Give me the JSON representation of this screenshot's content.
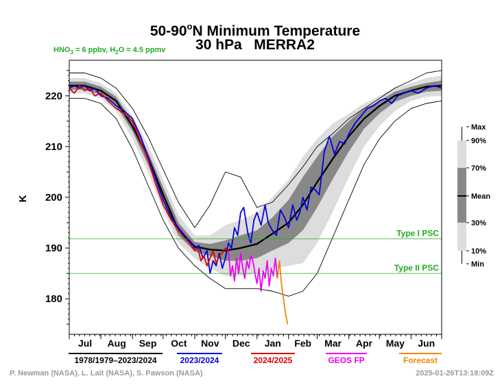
{
  "header": {
    "title_line1_pre": "50-90",
    "title_line1_sup": "o",
    "title_line1_post": "N Minimum Temperature",
    "title_line2": "30 hPa   MERRA2",
    "conditions": {
      "hno3_pre": "HNO",
      "hno3_sub": "3",
      "hno3_post": " = 6 ppbv, H",
      "h2o_sub": "2",
      "h2o_post": "O = 4.5 ppmv"
    }
  },
  "footer": {
    "credits": "P. Newman (NASA), L. Lait (NASA), S. Pawson (NASA)",
    "timestamp": "2025-01-26T13:18:09Z"
  },
  "percentile_key": {
    "labels": [
      "Max",
      "90%",
      "70%",
      "Mean",
      "30%",
      "10%",
      "Min"
    ]
  },
  "colors": {
    "climatology": "#000000",
    "year_2023_2024": "#0000dd",
    "year_2024_2025": "#dd0000",
    "geos_fp": "#ee00ee",
    "forecast": "#ee8800",
    "psc": "#22aa22",
    "band_outer": "#dddddd",
    "band_mid": "#bbbbbb",
    "band_inner": "#888888"
  },
  "chart_data": {
    "type": "line",
    "title": "50-90°N Minimum Temperature 30 hPa MERRA2",
    "ylabel": "K",
    "xlabel": "",
    "ylim": [
      173,
      227
    ],
    "xlim": [
      0,
      365
    ],
    "yticks": [
      180,
      190,
      200,
      210,
      220
    ],
    "x_axis": "day of year starting July 1",
    "months": [
      "Jul",
      "Aug",
      "Sep",
      "Oct",
      "Nov",
      "Dec",
      "Jan",
      "Feb",
      "Mar",
      "Apr",
      "May",
      "Jun"
    ],
    "month_starts": [
      0,
      31,
      62,
      92,
      123,
      153,
      184,
      215,
      243,
      274,
      304,
      335,
      365
    ],
    "reference_lines": [
      {
        "label": "Type I PSC",
        "value": 191.8
      },
      {
        "label": "Type II PSC",
        "value": 185.0
      }
    ],
    "climatology": {
      "x": [
        0,
        15,
        31,
        46,
        62,
        77,
        92,
        107,
        123,
        138,
        153,
        168,
        184,
        199,
        215,
        229,
        243,
        258,
        274,
        289,
        304,
        319,
        335,
        350,
        365
      ],
      "max": [
        224.5,
        224.5,
        223.5,
        221.5,
        217.5,
        212.0,
        205.5,
        199.0,
        194.0,
        198.5,
        205.0,
        204.0,
        198.0,
        199.0,
        202.5,
        206.0,
        210.0,
        212.5,
        215.5,
        217.5,
        219.5,
        221.5,
        223.0,
        224.5,
        225.0
      ],
      "p90": [
        223.5,
        223.5,
        222.5,
        220.5,
        216.0,
        210.5,
        203.5,
        196.5,
        192.5,
        192.5,
        194.5,
        195.5,
        197.0,
        200.0,
        203.5,
        208.0,
        211.5,
        214.5,
        216.5,
        218.5,
        220.0,
        221.5,
        222.5,
        223.5,
        224.0
      ],
      "p70": [
        222.8,
        222.8,
        221.8,
        219.8,
        215.0,
        209.0,
        202.0,
        195.0,
        191.2,
        190.8,
        191.5,
        192.5,
        193.5,
        196.0,
        199.5,
        204.0,
        208.0,
        212.0,
        215.0,
        217.5,
        219.0,
        220.8,
        221.8,
        222.5,
        223.0
      ],
      "mean": [
        222.0,
        222.0,
        221.0,
        219.0,
        214.0,
        208.0,
        200.5,
        193.5,
        190.3,
        189.7,
        189.5,
        190.0,
        190.8,
        192.8,
        195.0,
        198.5,
        203.0,
        207.5,
        212.0,
        215.5,
        218.0,
        220.0,
        221.0,
        221.8,
        222.0
      ],
      "p30": [
        221.2,
        221.2,
        220.2,
        218.0,
        213.0,
        206.5,
        199.0,
        192.5,
        189.3,
        188.5,
        187.5,
        187.5,
        188.0,
        189.5,
        191.0,
        193.5,
        198.0,
        203.5,
        209.0,
        213.5,
        216.5,
        218.8,
        220.0,
        220.8,
        221.0
      ],
      "p10": [
        220.5,
        220.5,
        219.5,
        217.0,
        211.5,
        205.0,
        197.5,
        191.0,
        188.0,
        186.0,
        184.5,
        184.5,
        185.0,
        186.0,
        186.5,
        187.0,
        191.0,
        197.0,
        204.0,
        210.0,
        214.0,
        217.0,
        219.0,
        219.8,
        220.0
      ],
      "min": [
        219.5,
        219.5,
        218.5,
        215.5,
        209.5,
        202.5,
        195.5,
        190.0,
        186.5,
        184.0,
        182.0,
        182.0,
        182.0,
        181.5,
        180.5,
        181.5,
        185.0,
        192.0,
        199.5,
        206.5,
        211.5,
        215.0,
        217.5,
        218.5,
        219.0
      ]
    },
    "series": [
      {
        "name": "1978/1979–2023/2024",
        "role": "mean"
      },
      {
        "name": "2023/2024",
        "x": [
          0,
          5,
          10,
          15,
          20,
          25,
          31,
          38,
          46,
          54,
          62,
          70,
          77,
          84,
          92,
          100,
          107,
          113,
          118,
          123,
          127,
          131,
          135,
          138,
          141,
          144,
          147,
          150,
          153,
          156,
          159,
          162,
          165,
          168,
          171,
          175,
          178,
          181,
          184,
          188,
          192,
          195,
          199,
          203,
          207,
          211,
          215,
          219,
          223,
          226,
          229,
          233,
          237,
          241,
          245,
          250,
          255,
          260,
          265,
          270,
          274,
          280,
          286,
          292,
          298,
          304,
          310,
          316,
          322,
          328,
          335,
          342,
          350,
          358,
          365
        ],
        "values": [
          221.5,
          222.0,
          221.5,
          222.0,
          221.0,
          221.5,
          220.0,
          219.5,
          218.0,
          217.0,
          215.5,
          212.0,
          208.0,
          204.0,
          199.5,
          196.0,
          194.0,
          192.5,
          191.5,
          190.0,
          190.5,
          188.0,
          189.5,
          185.0,
          187.5,
          186.5,
          189.0,
          186.0,
          188.0,
          191.0,
          190.0,
          194.0,
          192.5,
          197.0,
          198.0,
          193.0,
          191.0,
          195.5,
          197.0,
          194.5,
          198.5,
          195.0,
          193.5,
          192.5,
          197.5,
          196.0,
          194.0,
          198.5,
          195.5,
          197.0,
          200.0,
          197.5,
          202.0,
          201.5,
          200.5,
          209.0,
          212.0,
          208.5,
          211.0,
          210.5,
          212.5,
          214.5,
          216.0,
          217.5,
          218.0,
          219.0,
          219.5,
          218.5,
          220.0,
          220.5,
          221.0,
          220.5,
          221.5,
          222.0,
          221.5
        ]
      },
      {
        "name": "2024/2025",
        "x": [
          0,
          5,
          10,
          15,
          20,
          25,
          31,
          38,
          46,
          54,
          62,
          70,
          77,
          84,
          92,
          100,
          107,
          113,
          118,
          123,
          126,
          129,
          132,
          135,
          138,
          141,
          144,
          147,
          150,
          153,
          156
        ],
        "values": [
          221.5,
          220.5,
          222.0,
          221.0,
          221.5,
          220.0,
          220.5,
          219.0,
          217.5,
          216.5,
          215.0,
          211.0,
          207.5,
          203.0,
          198.5,
          195.5,
          193.5,
          192.0,
          191.0,
          189.5,
          190.0,
          187.5,
          188.5,
          186.5,
          188.0,
          189.5,
          187.0,
          188.5,
          189.0,
          190.0,
          189.5
        ]
      },
      {
        "name": "GEOS FP",
        "x": [
          156,
          158,
          160,
          162,
          164,
          166,
          168,
          170,
          172,
          174,
          176,
          178,
          180,
          182,
          184,
          186,
          188,
          190,
          192,
          194,
          196,
          198,
          200,
          202,
          204
        ],
        "values": [
          189.5,
          184.5,
          186.5,
          183.5,
          188.0,
          185.0,
          189.0,
          186.0,
          184.0,
          187.5,
          186.0,
          188.5,
          187.5,
          185.0,
          183.0,
          186.0,
          181.5,
          185.5,
          184.0,
          187.5,
          182.5,
          186.0,
          184.5,
          188.0,
          184.0
        ]
      },
      {
        "name": "Forecast",
        "x": [
          204,
          206,
          208,
          210,
          212,
          214
        ],
        "values": [
          184.0,
          187.5,
          183.0,
          180.0,
          177.0,
          175.0
        ]
      }
    ]
  },
  "legend": [
    {
      "label": "1978/1979–2023/2024",
      "color": "#000000"
    },
    {
      "label": "2023/2024",
      "color": "#0000dd"
    },
    {
      "label": "2024/2025",
      "color": "#dd0000"
    },
    {
      "label": "GEOS FP",
      "color": "#ee00ee"
    },
    {
      "label": "Forecast",
      "color": "#ee8800"
    }
  ]
}
